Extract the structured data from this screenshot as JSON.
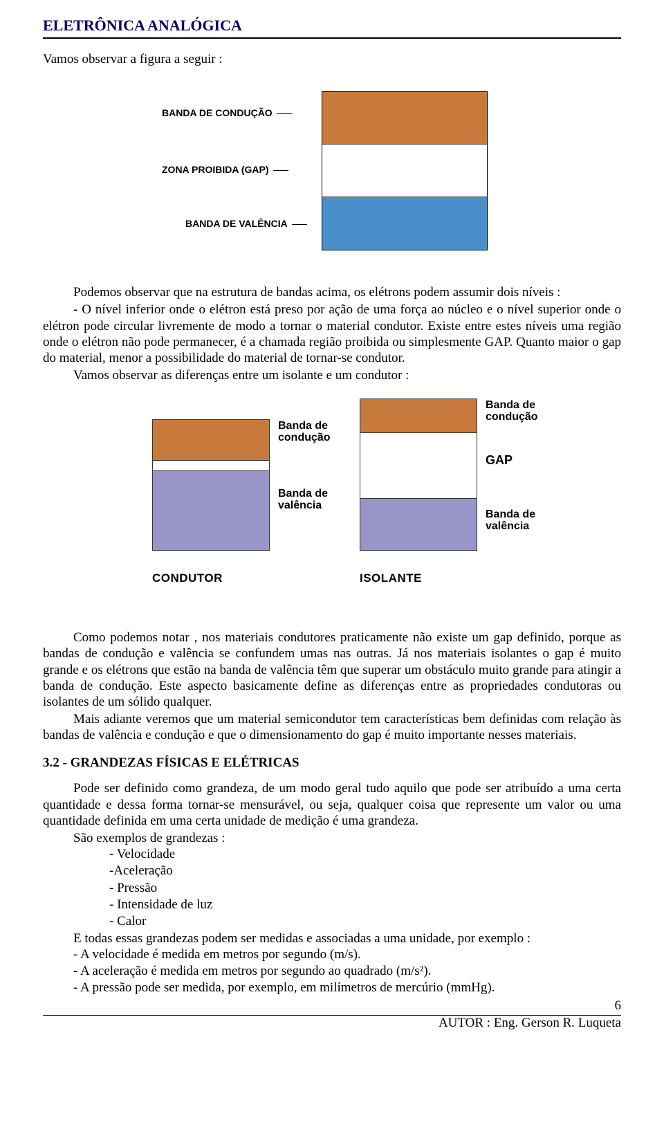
{
  "doc_title": "ELETRÔNICA ANALÓGICA",
  "intro_line": "Vamos observar a figura a seguir :",
  "fig1": {
    "labels": {
      "conducao": "BANDA DE CONDUÇÃO",
      "gap": "ZONA PROIBIDA (GAP)",
      "valencia": "BANDA DE VALÊNCIA"
    },
    "colors": {
      "conducao": "#c87a3c",
      "gap": "#ffffff",
      "valencia": "#4a8ecb"
    }
  },
  "para1": "Podemos observar  que na estrutura de bandas acima, os elétrons podem assumir dois níveis :",
  "para2": "- O nível inferior onde o elétron  está preso por ação de uma força ao núcleo  e o nível superior onde o elétron pode circular livremente de modo a tornar o material condutor. Existe entre estes níveis uma região onde o elétron não pode permanecer, é a chamada região proibida ou simplesmente GAP. Quanto maior o gap do material, menor a possibilidade do material  de tornar-se condutor.",
  "para3": "Vamos observar  as diferenças entre um isolante e um condutor :",
  "fig2": {
    "labels": {
      "banda_conducao": "Banda de\ncondução",
      "banda_valencia": "Banda de\nvalência",
      "gap": "GAP",
      "condutor": "CONDUTOR",
      "isolante": "ISOLANTE"
    },
    "colors": {
      "conducao": "#c87a3c",
      "valencia": "#9a95c7"
    }
  },
  "para4": "Como podemos notar , nos materiais condutores praticamente não existe um gap definido, porque as bandas de condução e valência se confundem umas nas outras. Já nos materiais isolantes o gap é muito grande e os elétrons que estão na banda de valência têm que superar um obstáculo muito grande para atingir a banda de condução. Este aspecto basicamente define as diferenças entre as propriedades condutoras ou isolantes de um sólido qualquer.",
  "para5": "Mais adiante veremos que um material semicondutor tem características bem definidas com relação às bandas de valência e condução e que o dimensionamento do gap é muito importante nesses materiais.",
  "section_heading": "3.2 - GRANDEZAS FÍSICAS E ELÉTRICAS",
  "para6": "Pode ser definido como grandeza, de um modo geral tudo aquilo que pode ser atribuído a uma certa quantidade e dessa forma tornar-se mensurável, ou seja,  qualquer coisa que represente um valor ou uma quantidade definida em uma certa unidade de medição é uma grandeza.",
  "examples_intro": "São exemplos de grandezas :",
  "examples": [
    "- Velocidade",
    "-Aceleração",
    "- Pressão",
    "- Intensidade de luz",
    "- Calor"
  ],
  "para7": "E todas essas grandezas podem ser medidas e associadas a uma unidade, por exemplo :",
  "bullets_end": [
    "- A velocidade é medida em metros por segundo (m/s).",
    "- A aceleração é medida em metros por segundo ao quadrado (m/s²).",
    "- A pressão pode ser medida, por exemplo, em  milímetros de mercúrio (mmHg)."
  ],
  "page_number": "6",
  "author_line": "AUTOR : Eng. Gerson R. Luqueta"
}
